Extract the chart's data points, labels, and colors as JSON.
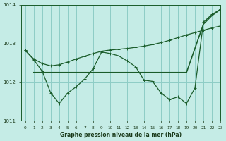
{
  "title": "Graphe pression niveau de la mer (hPa)",
  "bg_color": "#c5ece6",
  "grid_color": "#8ecdc6",
  "line_color": "#1a5c2a",
  "xlim": [
    -0.5,
    23
  ],
  "ylim": [
    1011,
    1014
  ],
  "yticks": [
    1011,
    1012,
    1013,
    1014
  ],
  "xticks": [
    0,
    1,
    2,
    3,
    4,
    5,
    6,
    7,
    8,
    9,
    10,
    11,
    12,
    13,
    14,
    15,
    16,
    17,
    18,
    19,
    20,
    21,
    22,
    23
  ],
  "line1_x": [
    0,
    1,
    2,
    3,
    4,
    5,
    6,
    7,
    8,
    9,
    10,
    11,
    12,
    13,
    14,
    15,
    16,
    17,
    18,
    19,
    20,
    21,
    22,
    23
  ],
  "line1_y": [
    1012.82,
    1012.6,
    1012.48,
    1012.42,
    1012.45,
    1012.52,
    1012.6,
    1012.67,
    1012.74,
    1012.8,
    1012.83,
    1012.85,
    1012.87,
    1012.9,
    1012.93,
    1012.97,
    1013.02,
    1013.08,
    1013.15,
    1013.22,
    1013.28,
    1013.34,
    1013.4,
    1013.45
  ],
  "line2_x": [
    0,
    1,
    2,
    3,
    4,
    5,
    6,
    7,
    8,
    9,
    10,
    11,
    12,
    13,
    14,
    15,
    16,
    17,
    18,
    19,
    20,
    21,
    22,
    23
  ],
  "line2_y": [
    1012.82,
    1012.58,
    1012.28,
    1011.72,
    1011.45,
    1011.72,
    1011.88,
    1012.08,
    1012.35,
    1012.78,
    1012.74,
    1012.68,
    1012.55,
    1012.4,
    1012.05,
    1012.02,
    1011.72,
    1011.55,
    1011.62,
    1011.45,
    1011.85,
    1013.55,
    1013.75,
    1013.88
  ],
  "line3_x": [
    1,
    3,
    12,
    19,
    21,
    22,
    23
  ],
  "line3_y": [
    1012.25,
    1012.25,
    1012.25,
    1012.25,
    1013.5,
    1013.72,
    1013.88
  ]
}
